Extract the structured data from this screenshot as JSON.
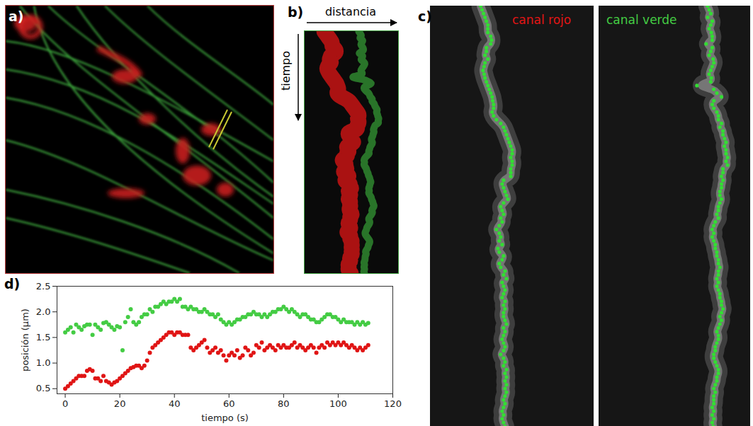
{
  "figure": {
    "a": {
      "label": "a)"
    },
    "b": {
      "label": "b)",
      "x_label": "distancia",
      "y_label": "tiempo"
    },
    "c": {
      "label": "c)"
    },
    "d": {
      "label": "d)"
    }
  },
  "chart_data": {
    "type": "scatter",
    "x_label": "tiempo (s)",
    "y_label": "posición (µm)",
    "x": [
      0,
      1,
      2,
      3,
      4,
      5,
      6,
      7,
      8,
      9,
      10,
      11,
      12,
      13,
      14,
      15,
      16,
      17,
      18,
      19,
      20,
      21,
      22,
      23,
      24,
      25,
      26,
      27,
      28,
      29,
      30,
      31,
      32,
      33,
      34,
      35,
      36,
      37,
      38,
      39,
      40,
      41,
      42,
      43,
      44,
      45,
      46,
      47,
      48,
      49,
      50,
      51,
      52,
      53,
      54,
      55,
      56,
      57,
      58,
      59,
      60,
      61,
      62,
      63,
      64,
      65,
      66,
      67,
      68,
      69,
      70,
      71,
      72,
      73,
      74,
      75,
      76,
      77,
      78,
      79,
      80,
      81,
      82,
      83,
      84,
      85,
      86,
      87,
      88,
      89,
      90,
      91,
      92,
      93,
      94,
      95,
      96,
      97,
      98,
      99,
      100,
      101,
      102,
      103,
      104,
      105,
      106,
      107,
      108,
      109,
      110,
      111
    ],
    "series": [
      {
        "name": "canal verde",
        "color": "#44cc44",
        "marker": "circle",
        "values": [
          1.6,
          1.65,
          1.7,
          1.6,
          1.75,
          1.7,
          1.65,
          1.72,
          1.75,
          1.75,
          1.55,
          1.75,
          1.7,
          1.65,
          1.78,
          1.8,
          1.75,
          1.7,
          1.65,
          1.72,
          1.7,
          1.25,
          1.8,
          1.9,
          2.05,
          1.8,
          1.75,
          1.8,
          1.9,
          1.95,
          1.95,
          2.05,
          2.0,
          2.1,
          2.1,
          2.15,
          2.2,
          2.15,
          2.2,
          2.2,
          2.25,
          2.2,
          2.25,
          2.1,
          2.1,
          2.05,
          2.1,
          2.05,
          2.05,
          2.0,
          2.0,
          2.05,
          2.0,
          1.95,
          1.95,
          1.9,
          1.95,
          1.85,
          1.8,
          1.75,
          1.8,
          1.75,
          1.8,
          1.85,
          1.85,
          1.9,
          1.9,
          1.95,
          1.95,
          2.0,
          1.95,
          1.95,
          1.9,
          1.95,
          1.9,
          1.95,
          2.0,
          2.0,
          2.05,
          2.05,
          2.1,
          2.05,
          2.0,
          2.05,
          2.0,
          1.95,
          1.9,
          1.95,
          1.95,
          1.9,
          1.85,
          1.85,
          1.8,
          1.8,
          1.85,
          1.9,
          1.95,
          1.95,
          1.9,
          1.9,
          1.85,
          1.8,
          1.85,
          1.8,
          1.8,
          1.8,
          1.75,
          1.8,
          1.75,
          1.8,
          1.75,
          1.78
        ]
      },
      {
        "name": "canal rojo",
        "color": "#e01515",
        "marker": "circle",
        "values": [
          0.5,
          0.55,
          0.6,
          0.65,
          0.7,
          0.75,
          0.75,
          0.75,
          0.85,
          0.88,
          0.85,
          0.7,
          0.7,
          0.65,
          0.75,
          0.65,
          0.62,
          0.58,
          0.62,
          0.65,
          0.7,
          0.75,
          0.8,
          0.85,
          0.9,
          0.92,
          0.95,
          0.95,
          0.9,
          0.95,
          1.05,
          1.2,
          1.3,
          1.35,
          1.4,
          1.45,
          1.5,
          1.55,
          1.6,
          1.6,
          1.55,
          1.6,
          1.6,
          1.55,
          1.55,
          1.55,
          1.3,
          1.25,
          1.3,
          1.35,
          1.4,
          1.45,
          1.3,
          1.2,
          1.25,
          1.3,
          1.2,
          1.25,
          1.15,
          1.05,
          1.15,
          1.2,
          1.15,
          1.25,
          1.1,
          1.15,
          1.3,
          1.25,
          1.15,
          1.2,
          1.35,
          1.3,
          1.4,
          1.25,
          1.3,
          1.35,
          1.3,
          1.25,
          1.35,
          1.3,
          1.35,
          1.3,
          1.3,
          1.35,
          1.4,
          1.3,
          1.35,
          1.3,
          1.25,
          1.3,
          1.35,
          1.3,
          1.2,
          1.3,
          1.35,
          1.3,
          1.4,
          1.35,
          1.4,
          1.35,
          1.4,
          1.35,
          1.4,
          1.35,
          1.3,
          1.35,
          1.3,
          1.25,
          1.3,
          1.25,
          1.3,
          1.35
        ]
      }
    ],
    "xlim": [
      -3,
      120
    ],
    "ylim": [
      0.4,
      2.5
    ],
    "xticks": [
      0,
      20,
      40,
      60,
      80,
      100,
      120
    ],
    "yticks": [
      0.5,
      {
        "value": 1,
        "label": "1.0"
      },
      1.5,
      {
        "value": 2,
        "label": "2.0"
      },
      2.5
    ]
  }
}
